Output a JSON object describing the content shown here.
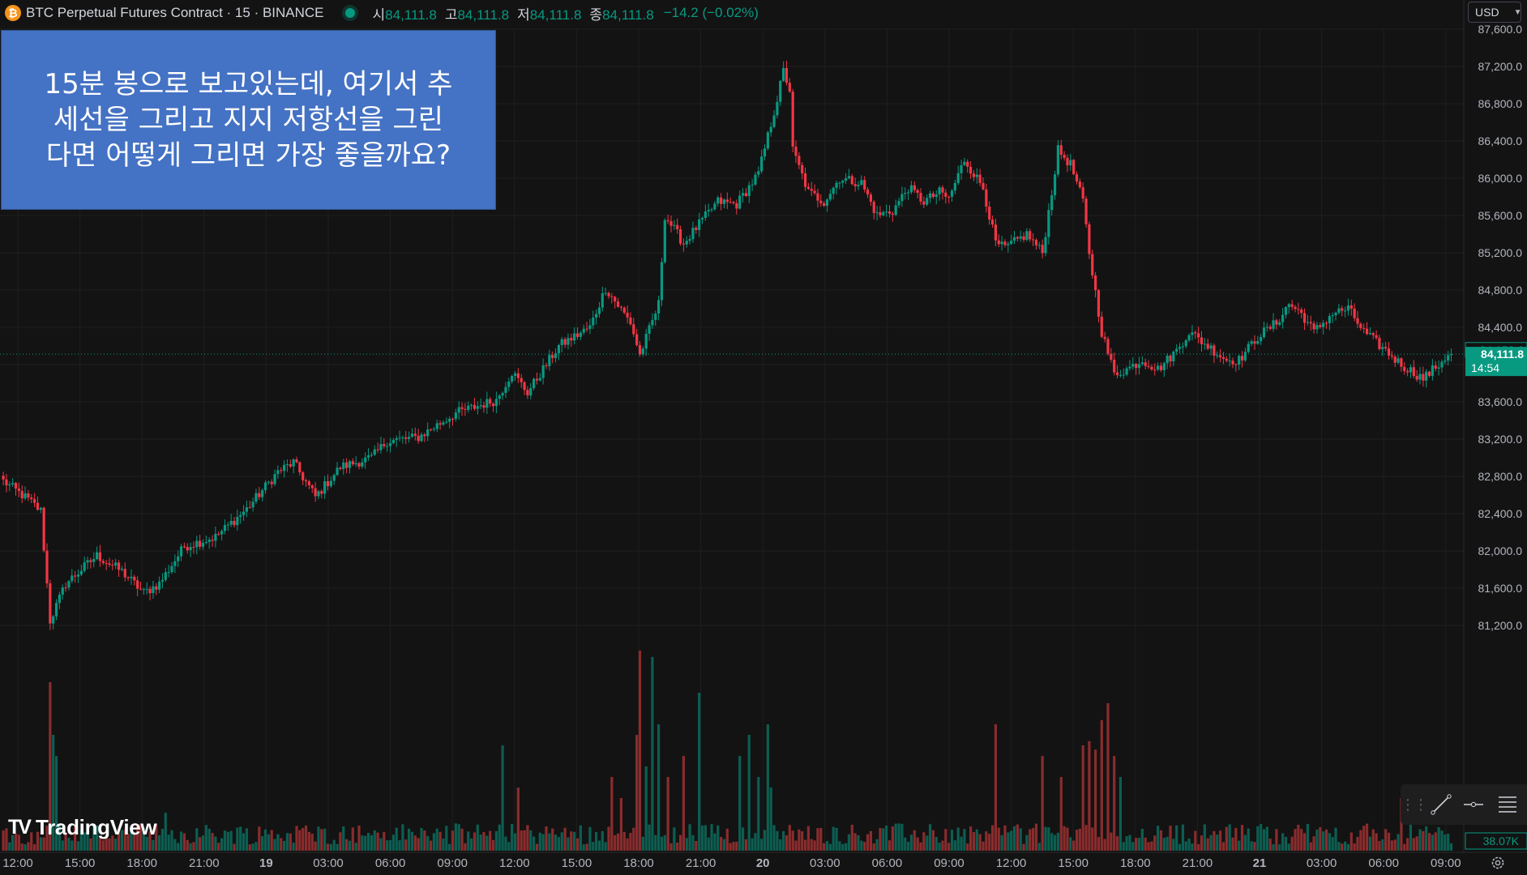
{
  "header": {
    "coin_icon": "bitcoin-icon",
    "coin_glyph": "₿",
    "title": "BTC Perpetual Futures Contract · 15 · BINANCE",
    "ohlc": [
      {
        "label": "시",
        "value": "84,111.8"
      },
      {
        "label": "고",
        "value": "84,111.8"
      },
      {
        "label": "저",
        "value": "84,111.8"
      },
      {
        "label": "종",
        "value": "84,111.8"
      }
    ],
    "change": "−14.2 (−0.02%)"
  },
  "currency": {
    "label": "USD",
    "icon": "chevron-down-icon"
  },
  "note": {
    "lines": [
      "15분 봉으로 보고있는데, 여기서 추",
      "세선을 그리고 지지 저항선을 그린",
      "다면 어떻게 그리면 가장 좋을까요?"
    ]
  },
  "logo": {
    "mark": "TV",
    "text": "TradingView"
  },
  "colors": {
    "background": "#131313",
    "up": "#089981",
    "down": "#f23645",
    "grid": "#1f1f1f",
    "note_bg": "#4472c4",
    "vol_up": "#0c5e51",
    "vol_down": "#8a2c2d"
  },
  "chart_data": {
    "type": "candlestick",
    "interval": "15",
    "y_axis": {
      "range": [
        81000,
        87700
      ],
      "ticks": [
        "87,600.0",
        "87,200.0",
        "86,800.0",
        "86,400.0",
        "86,000.0",
        "85,600.0",
        "85,200.0",
        "84,800.0",
        "84,400.0",
        "84,000.0",
        "83,600.0",
        "83,200.0",
        "82,800.0",
        "82,400.0",
        "82,000.0",
        "81,600.0",
        "81,200.0"
      ]
    },
    "x_axis": {
      "ticks": [
        "12:00",
        "15:00",
        "18:00",
        "21:00",
        "19",
        "03:00",
        "06:00",
        "09:00",
        "12:00",
        "15:00",
        "18:00",
        "21:00",
        "20",
        "03:00",
        "06:00",
        "09:00",
        "12:00",
        "15:00",
        "18:00",
        "21:00",
        "21",
        "03:00",
        "06:00",
        "09:00"
      ]
    },
    "price_labels": {
      "upper": "84,158.6",
      "last": "84,111.8",
      "countdown": "14:54",
      "volume": "38.07K"
    },
    "last_price": 84111.8,
    "upper_price": 84158.6,
    "anchors": [
      [
        0,
        82750
      ],
      [
        8,
        82550
      ],
      [
        12,
        82430
      ],
      [
        15,
        81250
      ],
      [
        20,
        81650
      ],
      [
        30,
        81950
      ],
      [
        38,
        81780
      ],
      [
        45,
        81550
      ],
      [
        50,
        81650
      ],
      [
        58,
        82050
      ],
      [
        68,
        82150
      ],
      [
        78,
        82450
      ],
      [
        88,
        82850
      ],
      [
        93,
        82950
      ],
      [
        100,
        82580
      ],
      [
        108,
        82900
      ],
      [
        118,
        83000
      ],
      [
        123,
        83180
      ],
      [
        133,
        83220
      ],
      [
        145,
        83480
      ],
      [
        158,
        83620
      ],
      [
        163,
        83920
      ],
      [
        168,
        83700
      ],
      [
        178,
        84200
      ],
      [
        188,
        84400
      ],
      [
        193,
        84820
      ],
      [
        201,
        84450
      ],
      [
        204,
        84100
      ],
      [
        210,
        84650
      ],
      [
        212,
        85600
      ],
      [
        218,
        85300
      ],
      [
        224,
        85550
      ],
      [
        229,
        85750
      ],
      [
        235,
        85720
      ],
      [
        242,
        86050
      ],
      [
        248,
        86850
      ],
      [
        250,
        87150
      ],
      [
        252,
        86950
      ],
      [
        253,
        86300
      ],
      [
        258,
        85850
      ],
      [
        263,
        85750
      ],
      [
        268,
        86000
      ],
      [
        275,
        85950
      ],
      [
        280,
        85600
      ],
      [
        285,
        85650
      ],
      [
        290,
        85900
      ],
      [
        295,
        85750
      ],
      [
        300,
        85850
      ],
      [
        303,
        85780
      ],
      [
        308,
        86200
      ],
      [
        314,
        85900
      ],
      [
        318,
        85300
      ],
      [
        321,
        85250
      ],
      [
        328,
        85400
      ],
      [
        333,
        85200
      ],
      [
        338,
        86300
      ],
      [
        342,
        86150
      ],
      [
        346,
        85750
      ],
      [
        348,
        85200
      ],
      [
        352,
        84350
      ],
      [
        356,
        83900
      ],
      [
        360,
        83950
      ],
      [
        365,
        84050
      ],
      [
        370,
        83950
      ],
      [
        376,
        84150
      ],
      [
        380,
        84350
      ],
      [
        386,
        84200
      ],
      [
        392,
        84050
      ],
      [
        396,
        84050
      ],
      [
        402,
        84300
      ],
      [
        408,
        84450
      ],
      [
        412,
        84650
      ],
      [
        416,
        84550
      ],
      [
        420,
        84350
      ],
      [
        426,
        84550
      ],
      [
        431,
        84600
      ],
      [
        436,
        84350
      ],
      [
        443,
        84150
      ],
      [
        448,
        84000
      ],
      [
        455,
        83850
      ],
      [
        460,
        84000
      ],
      [
        464,
        84150
      ]
    ],
    "volume_spikes": [
      [
        15,
        0.8
      ],
      [
        16,
        0.55
      ],
      [
        17,
        0.45
      ],
      [
        52,
        0.18
      ],
      [
        160,
        0.5
      ],
      [
        165,
        0.3
      ],
      [
        195,
        0.35
      ],
      [
        198,
        0.25
      ],
      [
        203,
        0.55
      ],
      [
        204,
        0.95
      ],
      [
        206,
        0.4
      ],
      [
        208,
        0.92
      ],
      [
        210,
        0.6
      ],
      [
        213,
        0.35
      ],
      [
        218,
        0.45
      ],
      [
        223,
        0.75
      ],
      [
        236,
        0.45
      ],
      [
        239,
        0.55
      ],
      [
        242,
        0.35
      ],
      [
        245,
        0.6
      ],
      [
        246,
        0.3
      ],
      [
        318,
        0.6
      ],
      [
        333,
        0.45
      ],
      [
        339,
        0.35
      ],
      [
        346,
        0.5
      ],
      [
        348,
        0.52
      ],
      [
        350,
        0.48
      ],
      [
        352,
        0.62
      ],
      [
        354,
        0.7
      ],
      [
        356,
        0.45
      ],
      [
        358,
        0.35
      ],
      [
        448,
        0.25
      ]
    ]
  }
}
